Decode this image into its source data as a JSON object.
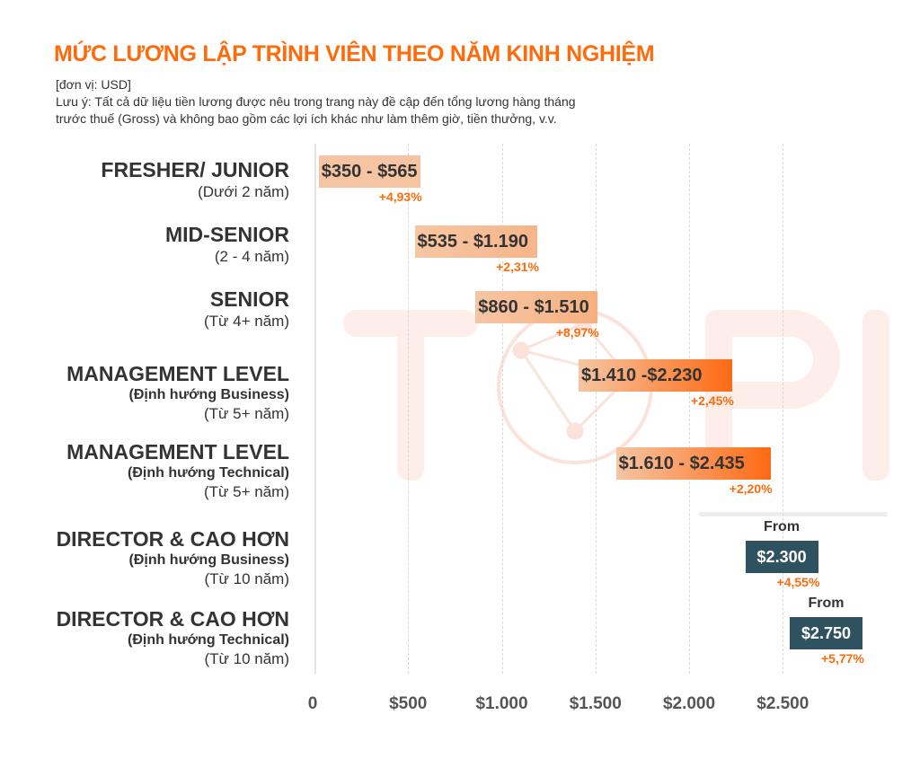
{
  "chart_data": {
    "type": "bar",
    "orientation": "horizontal-floating-range",
    "title": "MỨC LƯƠNG LẬP TRÌNH VIÊN THEO NĂM KINH NGHIỆM",
    "unit": "[đơn vị: USD]",
    "note": " Lưu ý: Tất cả dữ liệu tiền lương được nêu trong trang này đề cập đến tổng lương hàng tháng\ntrước thuế (Gross) và không bao gồm các lợi ích khác như làm thêm giờ, tiền thưởng, v.v.",
    "xlim": [
      0,
      2900
    ],
    "xticks": [
      0,
      500,
      1000,
      1500,
      2000,
      2500
    ],
    "xtick_labels": [
      "0",
      "$500",
      "$1.000",
      "$1.500",
      "$2.000",
      "$2.500"
    ],
    "grid": "vertical dashed",
    "colors": {
      "title": "#ff6b0a",
      "range_start": "#f5c5a3",
      "range_end": "#ff6a13",
      "director": "#2e5260",
      "growth": "#ff6b0a"
    },
    "watermark": "TOPDEV https://topdev",
    "rows": [
      {
        "level": "FRESHER/ JUNIOR",
        "detail": "",
        "years": "(Dưới 2 năm)",
        "low": 350,
        "high": 565,
        "label": "$350 - $565",
        "growth": "+4,93%"
      },
      {
        "level": "MID-SENIOR",
        "detail": "",
        "years": "(2 - 4 năm)",
        "low": 535,
        "high": 1190,
        "label": "$535 - $1.190",
        "growth": "+2,31%"
      },
      {
        "level": "SENIOR",
        "detail": "",
        "years": "(Từ 4+ năm)",
        "low": 860,
        "high": 1510,
        "label": "$860 - $1.510",
        "growth": "+8,97%"
      },
      {
        "level": "MANAGEMENT LEVEL",
        "detail": "(Định hướng Business)",
        "years": "(Từ 5+ năm)",
        "low": 1410,
        "high": 2230,
        "label": "$1.410 -$2.230",
        "growth": "+2,45%"
      },
      {
        "level": "MANAGEMENT LEVEL",
        "detail": "(Định hướng Technical)",
        "years": "(Từ 5+ năm)",
        "low": 1610,
        "high": 2435,
        "label": "$1.610 - $2.435",
        "growth": "+2,20%"
      },
      {
        "level": "DIRECTOR & CAO HƠN",
        "detail": "(Định hướng Business)",
        "years": "(Từ 10 năm)",
        "from": 2300,
        "from_label": "From",
        "label": "$2.300",
        "growth": "+4,55%"
      },
      {
        "level": "DIRECTOR & CAO HƠN",
        "detail": "(Định hướng Technical)",
        "years": "(Từ 10 năm)",
        "from": 2750,
        "from_label": "From",
        "label": "$2.750",
        "growth": "+5,77%"
      }
    ]
  }
}
